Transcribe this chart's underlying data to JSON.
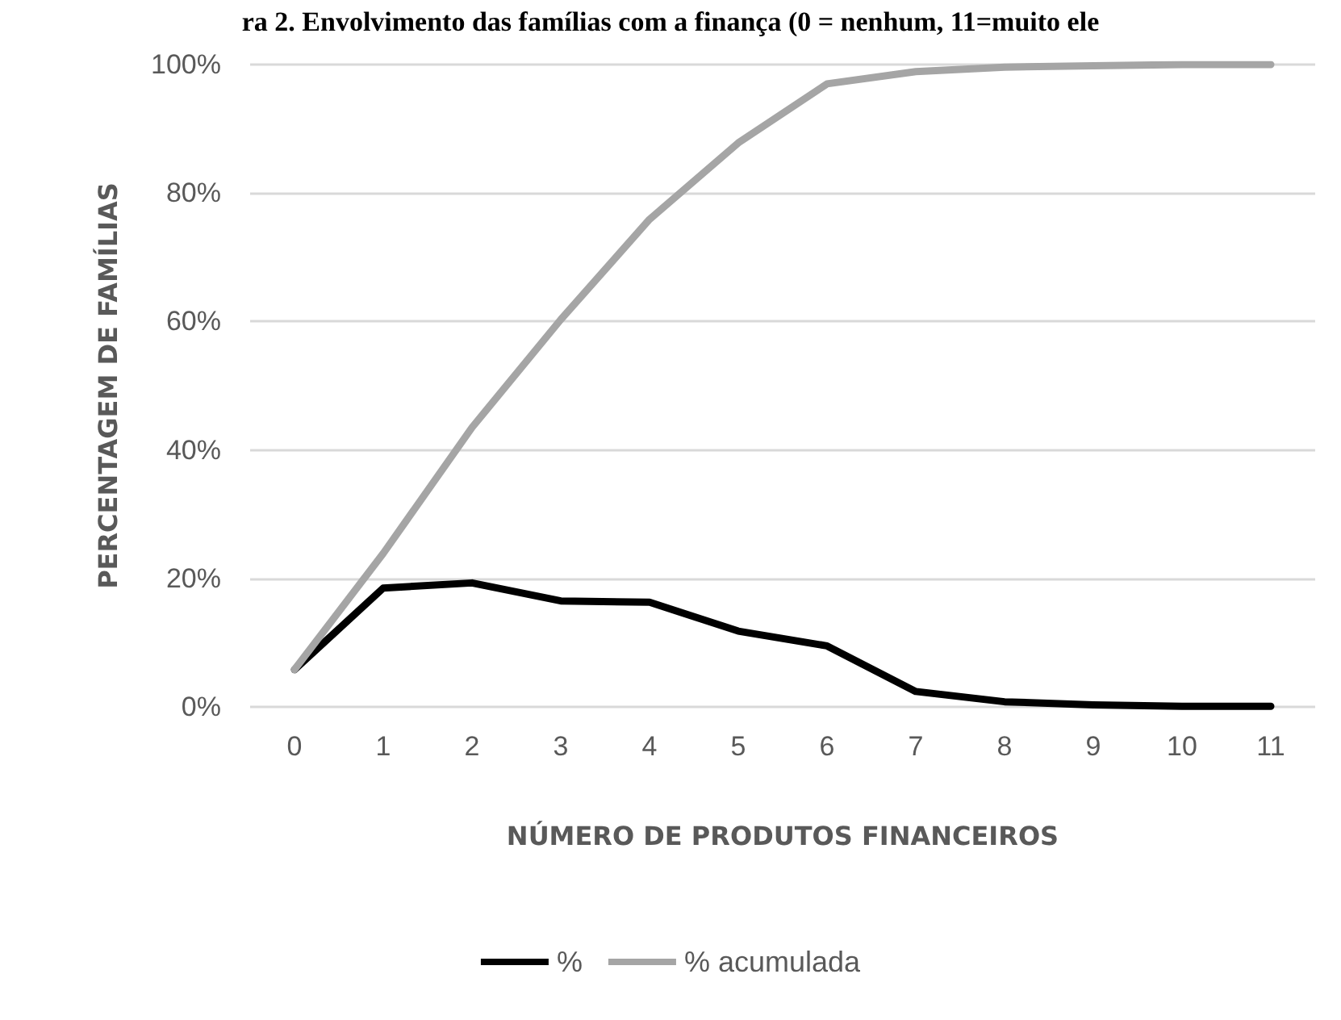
{
  "chart_data": {
    "type": "line",
    "title": "ra 2. Envolvimento das famílias com a finança (0 = nenhum, 11=muito ele",
    "xlabel": "NÚMERO DE PRODUTOS FINANCEIROS",
    "ylabel": "PERCENTAGEM DE FAMÍLIAS",
    "categories": [
      "0",
      "1",
      "2",
      "3",
      "4",
      "5",
      "6",
      "7",
      "8",
      "9",
      "10",
      "11"
    ],
    "series": [
      {
        "name": "%",
        "color": "#000000",
        "values": [
          5.8,
          18.5,
          19.3,
          16.5,
          16.3,
          11.8,
          9.5,
          2.4,
          0.8,
          0.3,
          0.1,
          0.1
        ]
      },
      {
        "name": "% acumulada",
        "color": "#a5a5a5",
        "values": [
          5.8,
          23.9,
          43.5,
          60.3,
          75.9,
          87.8,
          97.0,
          98.9,
          99.6,
          99.8,
          100,
          100
        ]
      }
    ],
    "ylim": [
      0,
      100
    ],
    "yticks": [
      {
        "value": 0,
        "label": "0%"
      },
      {
        "value": 20,
        "label": "20%"
      },
      {
        "value": 40,
        "label": "40%"
      },
      {
        "value": 60,
        "label": "60%"
      },
      {
        "value": 80,
        "label": "80%"
      },
      {
        "value": 100,
        "label": "100%"
      }
    ],
    "grid": "y",
    "legend": "bottom",
    "marker": "none",
    "line_style": "solid"
  }
}
